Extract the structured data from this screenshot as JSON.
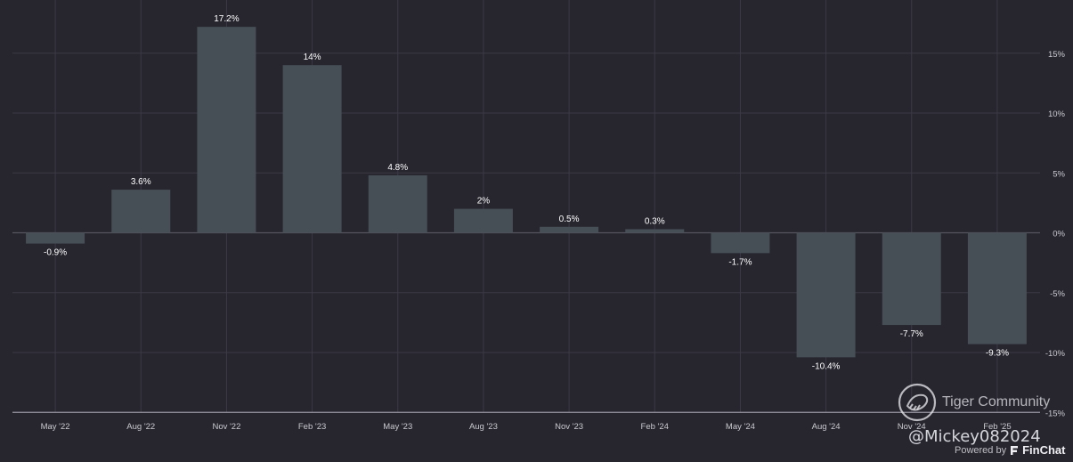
{
  "chart_data": {
    "type": "bar",
    "categories": [
      "May '22",
      "Aug '22",
      "Nov '22",
      "Feb '23",
      "May '23",
      "Aug '23",
      "Nov '23",
      "Feb '24",
      "May '24",
      "Aug '24",
      "Nov '24",
      "Feb '25"
    ],
    "values": [
      -0.9,
      3.6,
      17.2,
      14,
      4.8,
      2,
      0.5,
      0.3,
      -1.7,
      -10.4,
      -7.7,
      -9.3
    ],
    "data_labels": [
      "-0.9%",
      "3.6%",
      "17.2%",
      "14%",
      "4.8%",
      "2%",
      "0.5%",
      "0.3%",
      "-1.7%",
      "-10.4%",
      "-7.7%",
      "-9.3%"
    ],
    "y_ticks": [
      15,
      10,
      5,
      0,
      -5,
      -10,
      -15
    ],
    "y_tick_labels": [
      "15%",
      "10%",
      "5%",
      "0%",
      "-5%",
      "-10%",
      "-15%"
    ],
    "ylim": [
      -15,
      18
    ],
    "grid": true,
    "title": "",
    "xlabel": "",
    "ylabel": ""
  },
  "colors": {
    "background": "#27262f",
    "bar": "#464e56",
    "grid": "#3b3a45",
    "zero_line": "#55545f",
    "axis_line": "#9a99a3",
    "tick_text": "#c9c9cf",
    "label_text": "#ffffff"
  },
  "watermark": {
    "community": "Tiger Community",
    "handle": "@Mickey082024",
    "icon": "tiger-logo-icon"
  },
  "footer": {
    "powered_by": "Powered by",
    "brand": "FinChat",
    "icon": "finchat-logo-icon"
  }
}
